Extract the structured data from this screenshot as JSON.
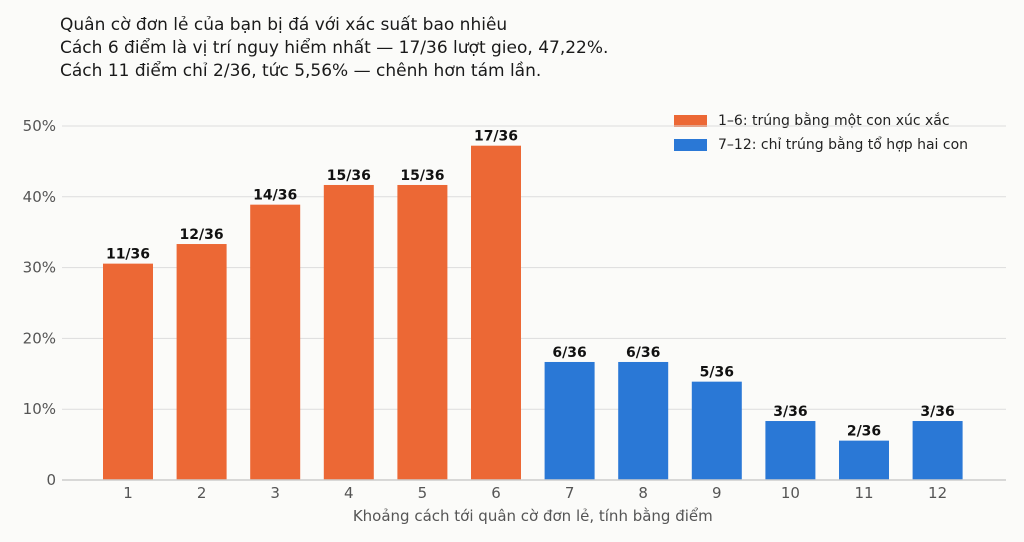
{
  "title_lines": [
    "Quân cờ đơn lẻ của bạn bị đá với xác suất bao nhiêu",
    "Cách 6 điểm là vị trí nguy hiểm nhất — 17/36 lượt gieo, 47,22%.",
    "Cách 11 điểm chỉ 2/36, tức 5,56% — chênh hơn tám lần."
  ],
  "legend": [
    {
      "label": "1–6: trúng bằng một con xúc xắc",
      "color": "#ec6835"
    },
    {
      "label": "7–12: chỉ trúng bằng tổ hợp hai con",
      "color": "#2a78d6"
    }
  ],
  "chart_data": {
    "type": "bar",
    "categories": [
      "1",
      "2",
      "3",
      "4",
      "5",
      "6",
      "7",
      "8",
      "9",
      "10",
      "11",
      "12"
    ],
    "values": [
      30.56,
      33.33,
      38.89,
      41.67,
      41.67,
      47.22,
      16.67,
      16.67,
      13.89,
      8.33,
      5.56,
      8.33
    ],
    "data_labels": [
      "11/36",
      "12/36",
      "14/36",
      "15/36",
      "15/36",
      "17/36",
      "6/36",
      "6/36",
      "5/36",
      "3/36",
      "2/36",
      "3/36"
    ],
    "colors": [
      "#ec6835",
      "#ec6835",
      "#ec6835",
      "#ec6835",
      "#ec6835",
      "#ec6835",
      "#2a78d6",
      "#2a78d6",
      "#2a78d6",
      "#2a78d6",
      "#2a78d6",
      "#2a78d6"
    ],
    "xlabel": "Khoảng cách tới quân cờ đơn lẻ, tính bằng điểm",
    "ylabel": "",
    "ylim": [
      0,
      50
    ],
    "yticks": [
      0,
      10,
      20,
      30,
      40,
      50
    ],
    "ytick_labels": [
      "0",
      "10%",
      "20%",
      "30%",
      "40%",
      "50%"
    ],
    "grid": true,
    "legend_position": "top-right"
  }
}
